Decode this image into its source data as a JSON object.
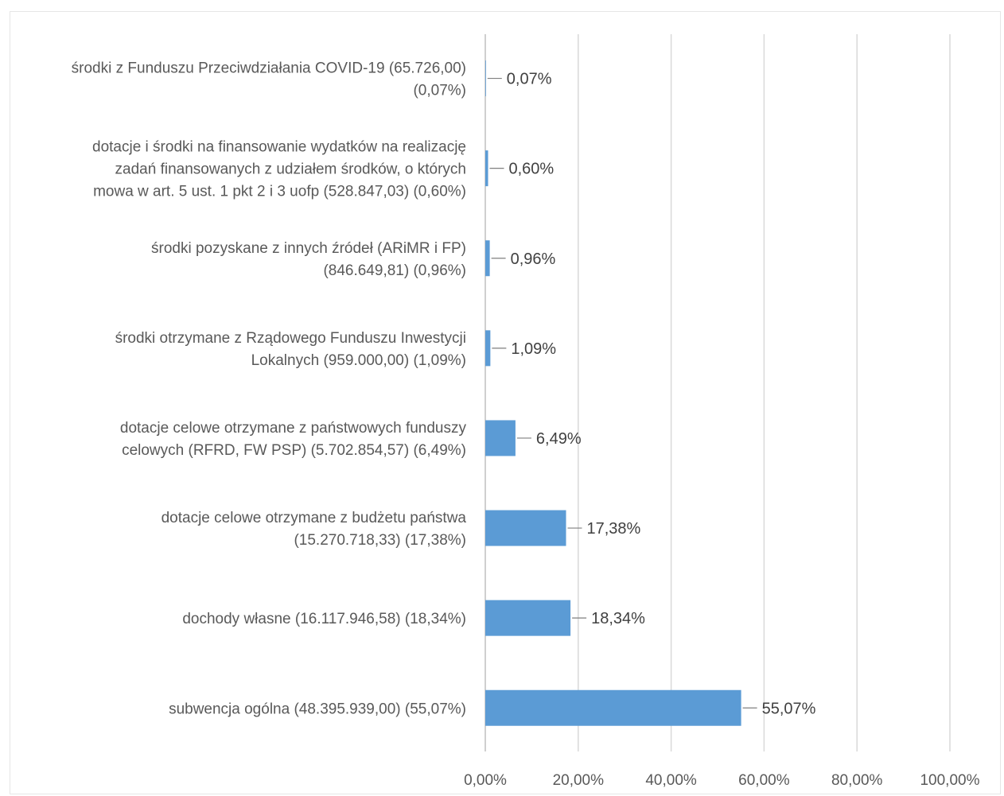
{
  "chart_data": {
    "type": "bar",
    "orientation": "horizontal",
    "categories": [
      [
        "środki z Funduszu Przeciwdziałania COVID-19 (65.726,00)",
        "(0,07%)"
      ],
      [
        "dotacje i środki na finansowanie wydatków na realizację",
        "zadań finansowanych z udziałem środków, o których",
        "mowa w art. 5 ust. 1 pkt 2 i 3 uofp (528.847,03) (0,60%)"
      ],
      [
        "środki pozyskane z innych źródeł (ARiMR i FP)",
        "(846.649,81) (0,96%)"
      ],
      [
        "środki otrzymane z Rządowego Funduszu Inwestycji",
        "Lokalnych (959.000,00) (1,09%)"
      ],
      [
        "dotacje celowe otrzymane z państwowych funduszy",
        "celowych (RFRD, FW PSP) (5.702.854,57) (6,49%)"
      ],
      [
        "dotacje celowe otrzymane z budżetu państwa",
        "(15.270.718,33) (17,38%)"
      ],
      [
        "dochody własne (16.117.946,58) (18,34%)"
      ],
      [
        "subwencja ogólna (48.395.939,00) (55,07%)"
      ]
    ],
    "values": [
      0.07,
      0.6,
      0.96,
      1.09,
      6.49,
      17.38,
      18.34,
      55.07
    ],
    "data_labels": [
      "0,07%",
      "0,60%",
      "0,96%",
      "1,09%",
      "6,49%",
      "17,38%",
      "18,34%",
      "55,07%"
    ],
    "xlim": [
      0,
      100
    ],
    "x_ticks": [
      "0,00%",
      "20,00%",
      "40,00%",
      "60,00%",
      "80,00%",
      "100,00%"
    ],
    "grid": "vertical",
    "title": "",
    "xlabel": "",
    "ylabel": "",
    "bar_color": "#5b9bd5",
    "grid_color": "#d9d9d9"
  }
}
